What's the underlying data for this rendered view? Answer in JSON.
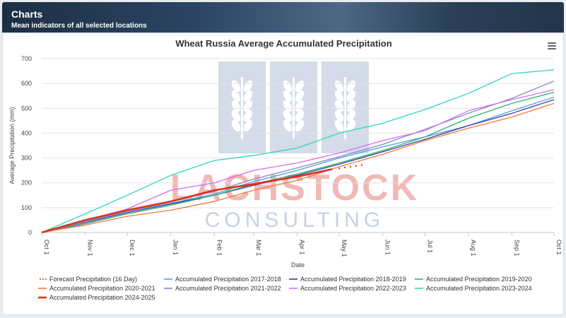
{
  "header": {
    "title": "Charts",
    "subtitle": "Mean indicators of all selected locations"
  },
  "watermark": {
    "line1": "LACHSTOCK",
    "line2": "CONSULTING"
  },
  "chart_data": {
    "type": "line",
    "title": "Wheat Russia Average Accumulated Precipitation",
    "xlabel": "Date",
    "ylabel": "Average Precipitation (mm)",
    "ylim": [
      0,
      700
    ],
    "yticks": [
      0,
      100,
      200,
      300,
      400,
      500,
      600,
      700
    ],
    "xlim": [
      0,
      365
    ],
    "xticks": [
      {
        "label": "Oct 1",
        "day": 0
      },
      {
        "label": "Nov 1",
        "day": 31
      },
      {
        "label": "Dec 1",
        "day": 61
      },
      {
        "label": "Jan 1",
        "day": 92
      },
      {
        "label": "Feb 1",
        "day": 123
      },
      {
        "label": "Mar 1",
        "day": 151
      },
      {
        "label": "Apr 1",
        "day": 182
      },
      {
        "label": "May 1",
        "day": 212
      },
      {
        "label": "Jun 1",
        "day": 243
      },
      {
        "label": "Jul 1",
        "day": 273
      },
      {
        "label": "Aug 1",
        "day": 304
      },
      {
        "label": "Sep 1",
        "day": 335
      },
      {
        "label": "Oct 1",
        "day": 365
      }
    ],
    "grid": true,
    "legend_position": "bottom",
    "series": [
      {
        "name": "Forecast Precipitation (16 Day)",
        "color": "#e0301e",
        "style": "dotted",
        "x": [
          0,
          15
        ],
        "y": [
          0,
          0
        ],
        "forecast_points": [
          [
            212,
            258
          ],
          [
            216,
            262
          ],
          [
            220,
            265
          ],
          [
            224,
            268
          ],
          [
            228,
            272
          ]
        ]
      },
      {
        "name": "Accumulated Precipitation 2017-2018",
        "color": "#4aa3df",
        "x": [
          0,
          31,
          61,
          92,
          123,
          151,
          182,
          212,
          243,
          273,
          304,
          335,
          365
        ],
        "y": [
          0,
          45,
          85,
          118,
          155,
          205,
          250,
          300,
          345,
          385,
          430,
          490,
          545
        ]
      },
      {
        "name": "Accumulated Precipitation 2018-2019",
        "color": "#3c3a9e",
        "x": [
          0,
          31,
          61,
          92,
          123,
          151,
          182,
          212,
          243,
          273,
          304,
          335,
          365
        ],
        "y": [
          0,
          40,
          80,
          115,
          150,
          190,
          230,
          275,
          325,
          375,
          430,
          480,
          535
        ]
      },
      {
        "name": "Accumulated Precipitation 2019-2020",
        "color": "#2db36a",
        "x": [
          0,
          31,
          61,
          92,
          123,
          151,
          182,
          212,
          243,
          273,
          304,
          335,
          365
        ],
        "y": [
          0,
          35,
          75,
          110,
          150,
          195,
          235,
          280,
          330,
          385,
          460,
          520,
          565
        ]
      },
      {
        "name": "Accumulated Precipitation 2020-2021",
        "color": "#f07a3c",
        "x": [
          0,
          31,
          61,
          92,
          123,
          151,
          182,
          212,
          243,
          273,
          304,
          335,
          365
        ],
        "y": [
          0,
          30,
          65,
          90,
          125,
          170,
          210,
          265,
          315,
          370,
          420,
          465,
          520
        ]
      },
      {
        "name": "Accumulated Precipitation 2021-2022",
        "color": "#8a86c9",
        "x": [
          0,
          31,
          61,
          92,
          123,
          151,
          182,
          212,
          243,
          273,
          304,
          335,
          365
        ],
        "y": [
          0,
          42,
          85,
          125,
          165,
          215,
          260,
          305,
          355,
          415,
          480,
          540,
          610
        ]
      },
      {
        "name": "Accumulated Precipitation 2022-2023",
        "color": "#d36ef0",
        "x": [
          0,
          31,
          61,
          92,
          123,
          151,
          182,
          212,
          243,
          273,
          304,
          335,
          365
        ],
        "y": [
          0,
          48,
          95,
          170,
          200,
          250,
          280,
          320,
          370,
          410,
          490,
          535,
          575
        ]
      },
      {
        "name": "Accumulated Precipitation 2023-2024",
        "color": "#2fd6bf",
        "x": [
          0,
          31,
          61,
          92,
          123,
          151,
          182,
          212,
          243,
          273,
          304,
          335,
          365
        ],
        "y": [
          0,
          75,
          150,
          230,
          290,
          310,
          340,
          400,
          440,
          495,
          560,
          640,
          655
        ]
      },
      {
        "name": "Accumulated Precipitation 2024-2025",
        "color": "#e0301e",
        "style": "bold",
        "x": [
          0,
          31,
          61,
          92,
          123,
          151,
          182,
          207
        ],
        "y": [
          0,
          50,
          90,
          125,
          170,
          195,
          225,
          255
        ]
      }
    ]
  }
}
